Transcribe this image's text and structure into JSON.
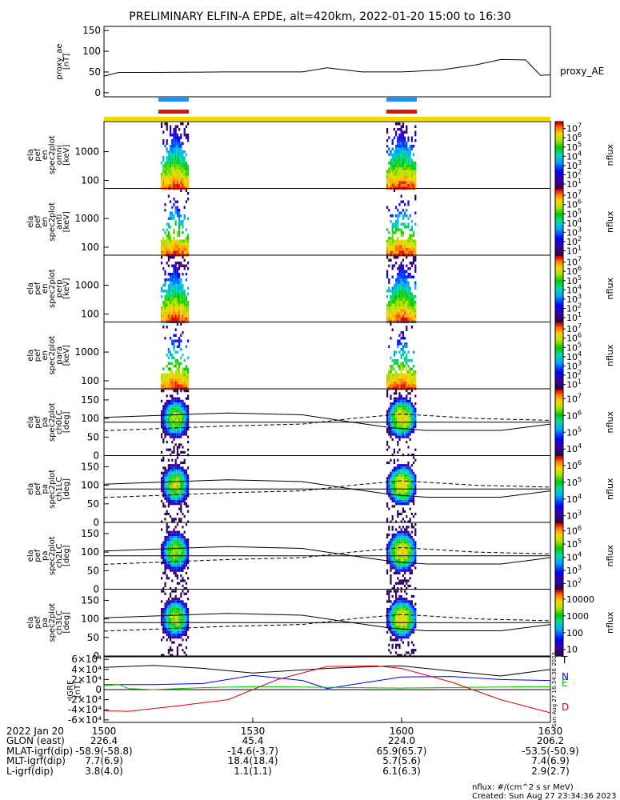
{
  "title": "PRELIMINARY ELFIN-A EPDE, alt=420km, 2022-01-20 15:00 to 16:30",
  "colors": {
    "bar_blue": "#1e90ff",
    "bar_red": "#e01010",
    "bar_yellow": "#ffd700",
    "curve_T": "#000000",
    "curve_N": "#0000ff",
    "curve_E": "#00c000",
    "curve_D": "#e00000"
  },
  "chart_data": [
    {
      "type": "line",
      "name": "proxy_ae",
      "ylabel": "proxy_ae [nT]",
      "ylim": [
        -10,
        160
      ],
      "yticks": [
        "0",
        "50",
        "100",
        "150"
      ],
      "legend": "proxy_AE",
      "x_minutes": [
        0,
        3,
        10,
        24,
        40,
        45,
        52,
        60,
        68,
        75,
        80,
        85,
        88,
        90
      ],
      "y": [
        40,
        49,
        49,
        50,
        50,
        60,
        50,
        50,
        55,
        67,
        80,
        79,
        42,
        43
      ]
    },
    {
      "type": "heatmap",
      "name": "ela_pef_en_spec2plot_omni",
      "ylabel": "ela pef en spec2plot omni [keV]",
      "yticks": [
        "100",
        "1000"
      ],
      "colorbar": {
        "label": "nflux",
        "ticks": [
          "10^1",
          "10^2",
          "10^3",
          "10^4",
          "10^5",
          "10^6",
          "10^7"
        ]
      },
      "intervals": [
        "15:13-15:17",
        "15:58-16:02"
      ]
    },
    {
      "type": "heatmap",
      "name": "ela_pef_en_spec2plot_anti",
      "ylabel": "ela pef en spec2plot anti [keV]",
      "yticks": [
        "100",
        "1000"
      ],
      "colorbar": {
        "label": "nflux",
        "ticks": [
          "10^1",
          "10^2",
          "10^3",
          "10^4",
          "10^5",
          "10^6",
          "10^7"
        ]
      }
    },
    {
      "type": "heatmap",
      "name": "ela_pef_en_spec2plot_perp",
      "ylabel": "ela pef en spec2plot perp [keV]",
      "yticks": [
        "100",
        "1000"
      ],
      "colorbar": {
        "label": "nflux",
        "ticks": [
          "10^1",
          "10^2",
          "10^3",
          "10^4",
          "10^5",
          "10^6",
          "10^7"
        ]
      }
    },
    {
      "type": "heatmap",
      "name": "ela_pef_en_spec2plot_para",
      "ylabel": "ela pef en spec2plot para [keV]",
      "yticks": [
        "100",
        "1000"
      ],
      "colorbar": {
        "label": "nflux",
        "ticks": [
          "10^1",
          "10^2",
          "10^3",
          "10^4",
          "10^5",
          "10^6",
          "10^7"
        ]
      }
    },
    {
      "type": "heatmap",
      "name": "ela_pef_pa_spec2plot_ch0LC",
      "ylabel": "ela pef pa spec2plot ch0LC [deg]",
      "yticks": [
        "0",
        "50",
        "100",
        "150"
      ],
      "colorbar": {
        "label": "nflux",
        "ticks": [
          "10^4",
          "10^5",
          "10^6",
          "10^7"
        ]
      }
    },
    {
      "type": "heatmap",
      "name": "ela_pef_pa_spec2plot_ch1LC",
      "ylabel": "ela pef pa spec2plot ch1LC [deg]",
      "yticks": [
        "0",
        "50",
        "100",
        "150"
      ],
      "colorbar": {
        "label": "nflux",
        "ticks": [
          "10^3",
          "10^4",
          "10^5",
          "10^6"
        ]
      }
    },
    {
      "type": "heatmap",
      "name": "ela_pef_pa_spec2plot_ch2LC",
      "ylabel": "ela pef pa spec2plot ch2LC [deg]",
      "yticks": [
        "0",
        "50",
        "100",
        "150"
      ],
      "colorbar": {
        "label": "nflux",
        "ticks": [
          "10^2",
          "10^3",
          "10^4",
          "10^5",
          "10^6"
        ]
      }
    },
    {
      "type": "heatmap",
      "name": "ela_pef_pa_spec2plot_ch3LC",
      "ylabel": "ela pef pa spec2plot ch3LC [deg]",
      "yticks": [
        "0",
        "50",
        "100",
        "150"
      ],
      "colorbar": {
        "label": "nflux",
        "ticks": [
          "10",
          "100",
          "1000",
          "10000"
        ]
      }
    },
    {
      "type": "line",
      "name": "IGRF",
      "ylabel": "IGRF [nT]",
      "ylim": [
        -65000,
        65000
      ],
      "yticks": [
        "-6×10⁴",
        "-4×10⁴",
        "-2×10⁴",
        "0",
        "2×10⁴",
        "4×10⁴",
        "6×10⁴"
      ],
      "series": [
        {
          "name": "T",
          "x_minutes": [
            0,
            10,
            20,
            30,
            45,
            58,
            60,
            70,
            80,
            90
          ],
          "y": [
            44000,
            48000,
            42000,
            33000,
            42000,
            47000,
            47000,
            37000,
            27000,
            40000
          ]
        },
        {
          "name": "N",
          "x_minutes": [
            0,
            10,
            20,
            30,
            40,
            45,
            50,
            60,
            70,
            80,
            90
          ],
          "y": [
            10000,
            10000,
            12000,
            28000,
            18000,
            2000,
            10000,
            25000,
            26000,
            20000,
            18000
          ]
        },
        {
          "name": "E",
          "x_minutes": [
            0,
            3,
            5,
            10,
            20,
            30,
            40,
            50,
            60,
            70,
            80,
            90
          ],
          "y": [
            8000,
            10000,
            2000,
            0,
            4000,
            6000,
            5000,
            4000,
            3000,
            4000,
            5000,
            6000
          ]
        },
        {
          "name": "D",
          "x_minutes": [
            0,
            5,
            15,
            25,
            35,
            45,
            55,
            60,
            70,
            80,
            90
          ],
          "y": [
            -42000,
            -43000,
            -32000,
            -20000,
            20000,
            46000,
            47000,
            42000,
            15000,
            -20000,
            -46000
          ]
        }
      ]
    }
  ],
  "xaxis": {
    "row_labels": [
      "2022 Jan 20",
      "GLON (east)",
      "MLAT-igrf(dip)",
      "MLT-igrf(dip)",
      "L-igrf(dip)"
    ],
    "ticks": [
      {
        "minute": 0,
        "values": [
          "1500",
          "226.4",
          "-58.9(-58.8)",
          "7.7(6.9)",
          "3.8(4.0)"
        ]
      },
      {
        "minute": 30,
        "values": [
          "1530",
          "45.4",
          "-14.6(-3.7)",
          "18.4(18.4)",
          "1.1(1.1)"
        ]
      },
      {
        "minute": 60,
        "values": [
          "1600",
          "224.0",
          "65.9(65.7)",
          "5.7(5.6)",
          "6.1(6.3)"
        ]
      },
      {
        "minute": 90,
        "values": [
          "1630",
          "206.2",
          "-53.5(-50.9)",
          "7.4(6.9)",
          "2.9(2.7)"
        ]
      }
    ]
  },
  "footer": {
    "units": "nflux: #/(cm^2 s sr MeV)",
    "created": "Created: Sun Aug 27 23:34:36 2023",
    "side_stamp": "Sun Aug 27 16:34:36 2023"
  }
}
